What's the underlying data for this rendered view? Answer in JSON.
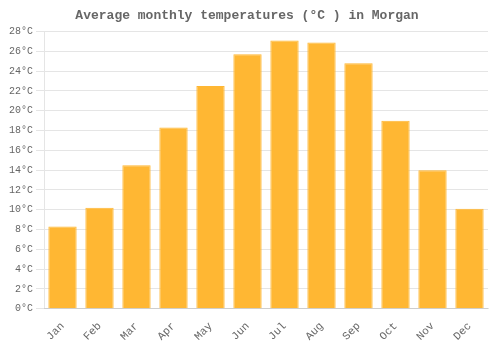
{
  "chart_data": {
    "type": "bar",
    "title": "Average monthly temperatures (°C ) in Morgan",
    "categories": [
      "Jan",
      "Feb",
      "Mar",
      "Apr",
      "May",
      "Jun",
      "Jul",
      "Aug",
      "Sep",
      "Oct",
      "Nov",
      "Dec"
    ],
    "values": [
      8.3,
      10.2,
      14.5,
      18.3,
      22.5,
      25.7,
      27.1,
      26.9,
      24.8,
      19.0,
      14.0,
      10.1
    ],
    "color": "#FFB733",
    "ylim": [
      0,
      28
    ],
    "yticks": [
      {
        "value": 0,
        "label": "0°C"
      },
      {
        "value": 2,
        "label": "2°C"
      },
      {
        "value": 4,
        "label": "4°C"
      },
      {
        "value": 6,
        "label": "6°C"
      },
      {
        "value": 8,
        "label": "8°C"
      },
      {
        "value": 10,
        "label": "10°C"
      },
      {
        "value": 12,
        "label": "12°C"
      },
      {
        "value": 14,
        "label": "14°C"
      },
      {
        "value": 16,
        "label": "16°C"
      },
      {
        "value": 18,
        "label": "18°C"
      },
      {
        "value": 20,
        "label": "20°C"
      },
      {
        "value": 22,
        "label": "22°C"
      },
      {
        "value": 24,
        "label": "24°C"
      },
      {
        "value": 26,
        "label": "26°C"
      },
      {
        "value": 28,
        "label": "28°C"
      }
    ],
    "grid": true
  }
}
